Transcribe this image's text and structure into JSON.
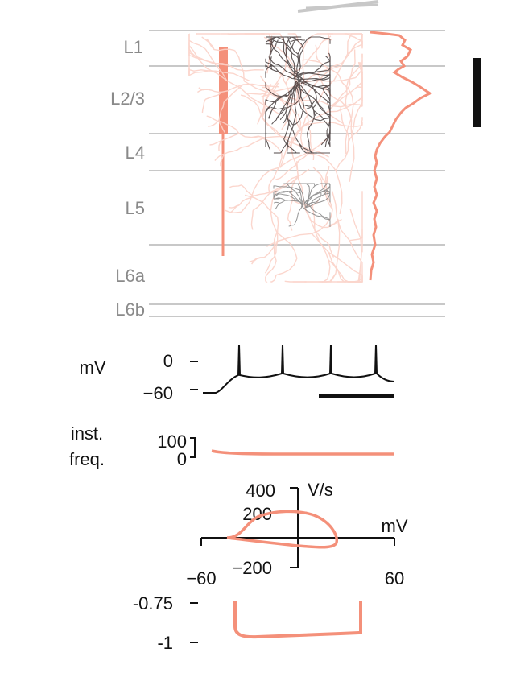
{
  "figure": {
    "layers": {
      "labels": [
        "L1",
        "L2/3",
        "L4",
        "L5",
        "L6a",
        "L6b"
      ]
    },
    "voltage_trace": {
      "unit_label": "mV",
      "tick_labels": [
        "0",
        "−60"
      ]
    },
    "instantaneous_frequency": {
      "label_line1": "inst.",
      "label_line2": "freq.",
      "tick_labels": [
        "100",
        "0"
      ]
    },
    "phase_plot": {
      "y_unit": "V/s",
      "x_unit": "mV",
      "y_tick_labels": [
        "400",
        "200",
        "−200"
      ],
      "x_tick_labels": [
        "−60",
        "60"
      ]
    },
    "bottom_trace": {
      "tick_labels": [
        "-0.75",
        "-1"
      ]
    },
    "colors": {
      "accent": "#f4907a",
      "accent_light": "#fbd2c8",
      "morphology_dark": "#2a1f1f",
      "gridline": "#c8c8c8",
      "layer_label": "#8a8a8a"
    }
  }
}
